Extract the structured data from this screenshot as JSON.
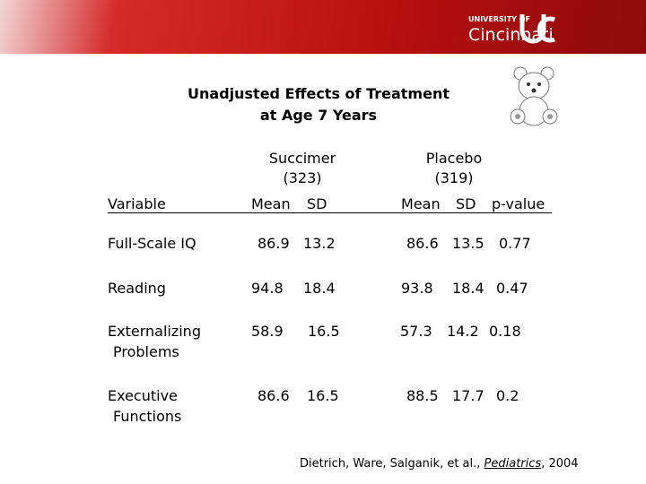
{
  "header": {
    "logo_small": "UNIVERSITY OF",
    "logo_large": "Cincinnati"
  },
  "title": [
    "Unadjusted Effects of Treatment",
    "at Age 7 Years"
  ],
  "table": {
    "groups": [
      {
        "name": "Succimer",
        "n": "(323)"
      },
      {
        "name": "Placebo",
        "n": "(319)"
      }
    ],
    "columns": [
      "Variable",
      "Mean",
      "SD",
      "Mean",
      "SD",
      "p-value"
    ],
    "rows": [
      {
        "label": [
          "Full-Scale IQ"
        ],
        "values": [
          86.9,
          13.2,
          86.6,
          13.5,
          0.77
        ]
      },
      {
        "label": [
          "Reading"
        ],
        "values": [
          94.8,
          18.4,
          93.8,
          18.4,
          0.47
        ]
      },
      {
        "label": [
          "Externalizing",
          "Problems"
        ],
        "values": [
          58.9,
          16.5,
          57.3,
          14.2,
          0.18
        ]
      },
      {
        "label": [
          "Executive",
          "Functions"
        ],
        "values": [
          86.6,
          16.5,
          88.5,
          17.7,
          0.2
        ]
      }
    ]
  },
  "citation": {
    "authors": "Dietrich, Ware, Salganik, et al., ",
    "journal": "Pediatrics",
    "year": ", 2004"
  }
}
